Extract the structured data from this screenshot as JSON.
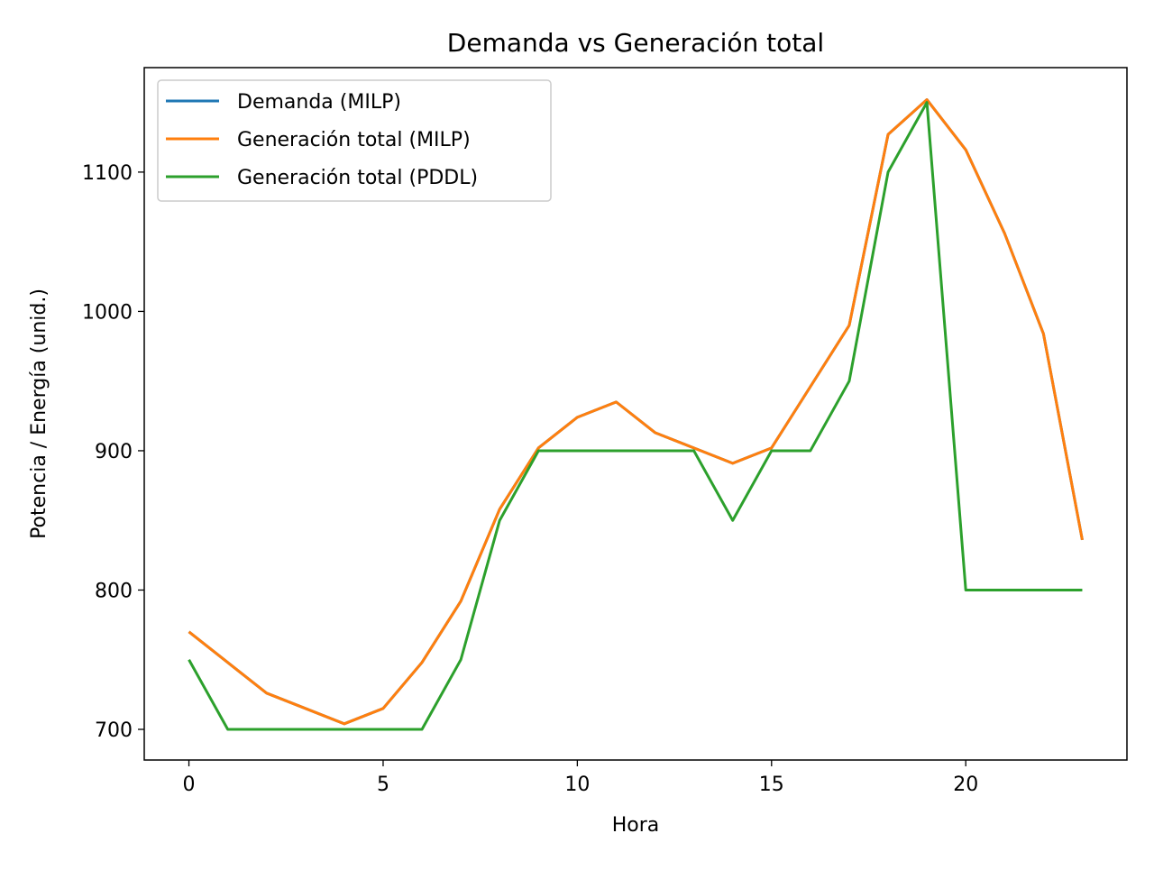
{
  "chart_data": {
    "type": "line",
    "title": "Demanda vs Generación total",
    "xlabel": "Hora",
    "ylabel": "Potencia / Energía (unid.)",
    "xlim": [
      -1.15,
      24.15
    ],
    "ylim": [
      678,
      1175
    ],
    "xticks": [
      0,
      5,
      10,
      15,
      20
    ],
    "yticks": [
      700,
      800,
      900,
      1000,
      1100
    ],
    "grid": false,
    "legend_position": "top-left",
    "x": [
      0,
      1,
      2,
      3,
      4,
      5,
      6,
      7,
      8,
      9,
      10,
      11,
      12,
      13,
      14,
      15,
      16,
      17,
      18,
      19,
      20,
      21,
      22,
      23
    ],
    "series": [
      {
        "name": "Demanda (MILP)",
        "color": "#1f77b4",
        "values": [
          770,
          748,
          726,
          715,
          704,
          715,
          748,
          792,
          858,
          902,
          924,
          935,
          913,
          902,
          891,
          902,
          946,
          990,
          1127,
          1152,
          1116,
          1056,
          984,
          836
        ]
      },
      {
        "name": "Generación total (MILP)",
        "color": "#ff7f0e",
        "values": [
          770,
          748,
          726,
          715,
          704,
          715,
          748,
          792,
          858,
          902,
          924,
          935,
          913,
          902,
          891,
          902,
          946,
          990,
          1127,
          1152,
          1116,
          1056,
          984,
          836
        ]
      },
      {
        "name": "Generación total (PDDL)",
        "color": "#2ca02c",
        "values": [
          750,
          700,
          700,
          700,
          700,
          700,
          700,
          750,
          850,
          900,
          900,
          900,
          900,
          900,
          850,
          900,
          900,
          950,
          1100,
          1150,
          800,
          800,
          800,
          800
        ]
      }
    ]
  }
}
